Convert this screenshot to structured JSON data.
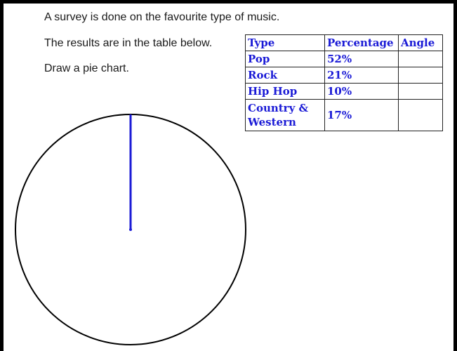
{
  "instructions": [
    "A survey is done on the favourite type of music.",
    "The results are in the table below.",
    "Draw a pie chart."
  ],
  "table": {
    "headers": [
      "Type",
      "Percentage",
      "Angle"
    ],
    "rows": [
      {
        "type": "Pop",
        "percentage": "52%",
        "angle": ""
      },
      {
        "type": "Rock",
        "percentage": "21%",
        "angle": ""
      },
      {
        "type": "Hip Hop",
        "percentage": "10%",
        "angle": ""
      },
      {
        "type_line1": "Country &",
        "type_line2": "Western",
        "percentage": "17%",
        "angle": ""
      }
    ]
  },
  "colors": {
    "table_text": "#1a1ad6",
    "radius_line": "#1a1ad6",
    "circle": "#000000"
  }
}
